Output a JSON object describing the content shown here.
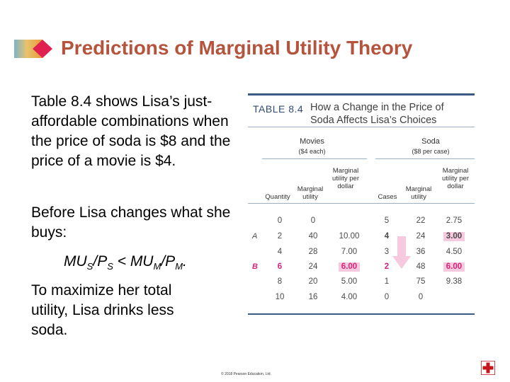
{
  "title": "Predictions of Marginal Utility Theory",
  "paragraphs": {
    "p1": "Table 8.4 shows Lisa’s just-affordable combinations when the price of soda is $8 and the price of a movie is $4.",
    "p2": "Before Lisa changes what she buys:",
    "p3": {
      "mu": "MU",
      "s": "S",
      "p": "P",
      "lt": "< MU",
      "m": "M",
      "end": "."
    },
    "p4": "To maximize her total utility, Lisa drinks less soda."
  },
  "table": {
    "label": "TABLE 8.4",
    "caption": "How a Change in the Price of Soda Affects Lisa’s Choices",
    "movies_header": "Movies",
    "movies_sub": "($4 each)",
    "soda_header": "Soda",
    "soda_sub": "($8 per case)",
    "columns": [
      "Quantity",
      "Marginal utility",
      "Marginal utility per dollar",
      "Cases",
      "Marginal utility",
      "Marginal utility per dollar"
    ],
    "rows": [
      {
        "label": "",
        "cells": [
          "0",
          "0",
          "",
          "5",
          "22",
          "2.75"
        ]
      },
      {
        "label": "A",
        "cells": [
          "2",
          "40",
          "10.00",
          "4",
          "24",
          "3.00"
        ]
      },
      {
        "label": "",
        "cells": [
          "4",
          "28",
          "7.00",
          "3",
          "36",
          "4.50"
        ]
      },
      {
        "label": "B",
        "cells": [
          "6",
          "24",
          "6.00",
          "2",
          "48",
          "6.00"
        ]
      },
      {
        "label": "",
        "cells": [
          "8",
          "20",
          "5.00",
          "1",
          "75",
          "9.38"
        ]
      },
      {
        "label": "",
        "cells": [
          "10",
          "16",
          "4.00",
          "0",
          "0",
          ""
        ]
      }
    ]
  },
  "copyright": "© 2018 Pearson Education, Ltd.",
  "colors": {
    "title": "#b5533c",
    "accent_pink": "#d6237a",
    "highlight": "#f7c9de",
    "rule": "#3a5b82"
  },
  "icons": {
    "logo": "diamond-logo-icon",
    "corner": "red-cross-icon"
  }
}
